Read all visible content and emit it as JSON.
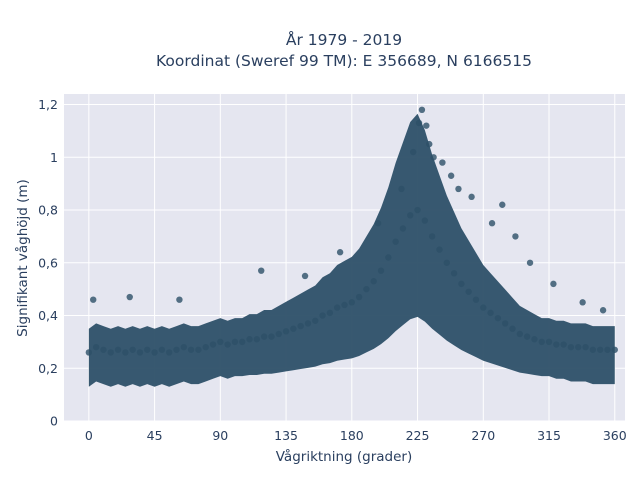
{
  "chart_data": {
    "type": "scatter",
    "title_line1": "År 1979 - 2019",
    "title_line2": "Koordinat (Sweref 99 TM): E 356689, N 6166515",
    "xlabel": "Vågriktning (grader)",
    "ylabel": "Signifikant våghöjd (m)",
    "xlim": [
      -17,
      367
    ],
    "ylim": [
      0,
      1.24
    ],
    "x_ticks": [
      0,
      45,
      90,
      135,
      180,
      225,
      270,
      315,
      360
    ],
    "x_tick_labels": [
      "0",
      "45",
      "90",
      "135",
      "180",
      "225",
      "270",
      "315",
      "360"
    ],
    "y_ticks": [
      0,
      0.2,
      0.4,
      0.6,
      0.8,
      1.0,
      1.2
    ],
    "y_tick_labels": [
      "0",
      "0,2",
      "0,4",
      "0,6",
      "0,8",
      "1",
      "1,2"
    ],
    "grid": true,
    "marker_color": "#2d5068",
    "plot_bg": "#e5e6f0",
    "series": [
      {
        "x": [
          0,
          5,
          10,
          15,
          20,
          25,
          30,
          35,
          40,
          45,
          50,
          55,
          60,
          65,
          70,
          75,
          80,
          85,
          90,
          95,
          100,
          105,
          110,
          115,
          120,
          125,
          130,
          135,
          140,
          145,
          150,
          155,
          160,
          165,
          170,
          175,
          180,
          185,
          190,
          195,
          200,
          205,
          210,
          215,
          220,
          225,
          230,
          235,
          240,
          245,
          250,
          255,
          260,
          265,
          270,
          275,
          280,
          285,
          290,
          295,
          300,
          305,
          310,
          315,
          320,
          325,
          330,
          335,
          340,
          345,
          350,
          355,
          360,
          3,
          28,
          62,
          118,
          148,
          172,
          198,
          214,
          222,
          226,
          228,
          231,
          233,
          236,
          242,
          248,
          253,
          262,
          276,
          283,
          292,
          302,
          318,
          338,
          352
        ],
        "y": [
          0.26,
          0.28,
          0.27,
          0.26,
          0.27,
          0.26,
          0.27,
          0.26,
          0.27,
          0.26,
          0.27,
          0.26,
          0.27,
          0.28,
          0.27,
          0.27,
          0.28,
          0.29,
          0.3,
          0.29,
          0.3,
          0.3,
          0.31,
          0.31,
          0.32,
          0.32,
          0.33,
          0.34,
          0.35,
          0.36,
          0.37,
          0.38,
          0.4,
          0.41,
          0.43,
          0.44,
          0.45,
          0.47,
          0.5,
          0.53,
          0.57,
          0.62,
          0.68,
          0.73,
          0.78,
          0.8,
          0.76,
          0.7,
          0.65,
          0.6,
          0.56,
          0.52,
          0.49,
          0.46,
          0.43,
          0.41,
          0.39,
          0.37,
          0.35,
          0.33,
          0.32,
          0.31,
          0.3,
          0.3,
          0.29,
          0.29,
          0.28,
          0.28,
          0.28,
          0.27,
          0.27,
          0.27,
          0.27,
          0.46,
          0.47,
          0.46,
          0.57,
          0.55,
          0.64,
          0.75,
          0.88,
          1.02,
          1.13,
          1.18,
          1.12,
          1.05,
          1.0,
          0.98,
          0.93,
          0.88,
          0.85,
          0.75,
          0.82,
          0.7,
          0.6,
          0.52,
          0.45,
          0.42
        ]
      }
    ]
  }
}
